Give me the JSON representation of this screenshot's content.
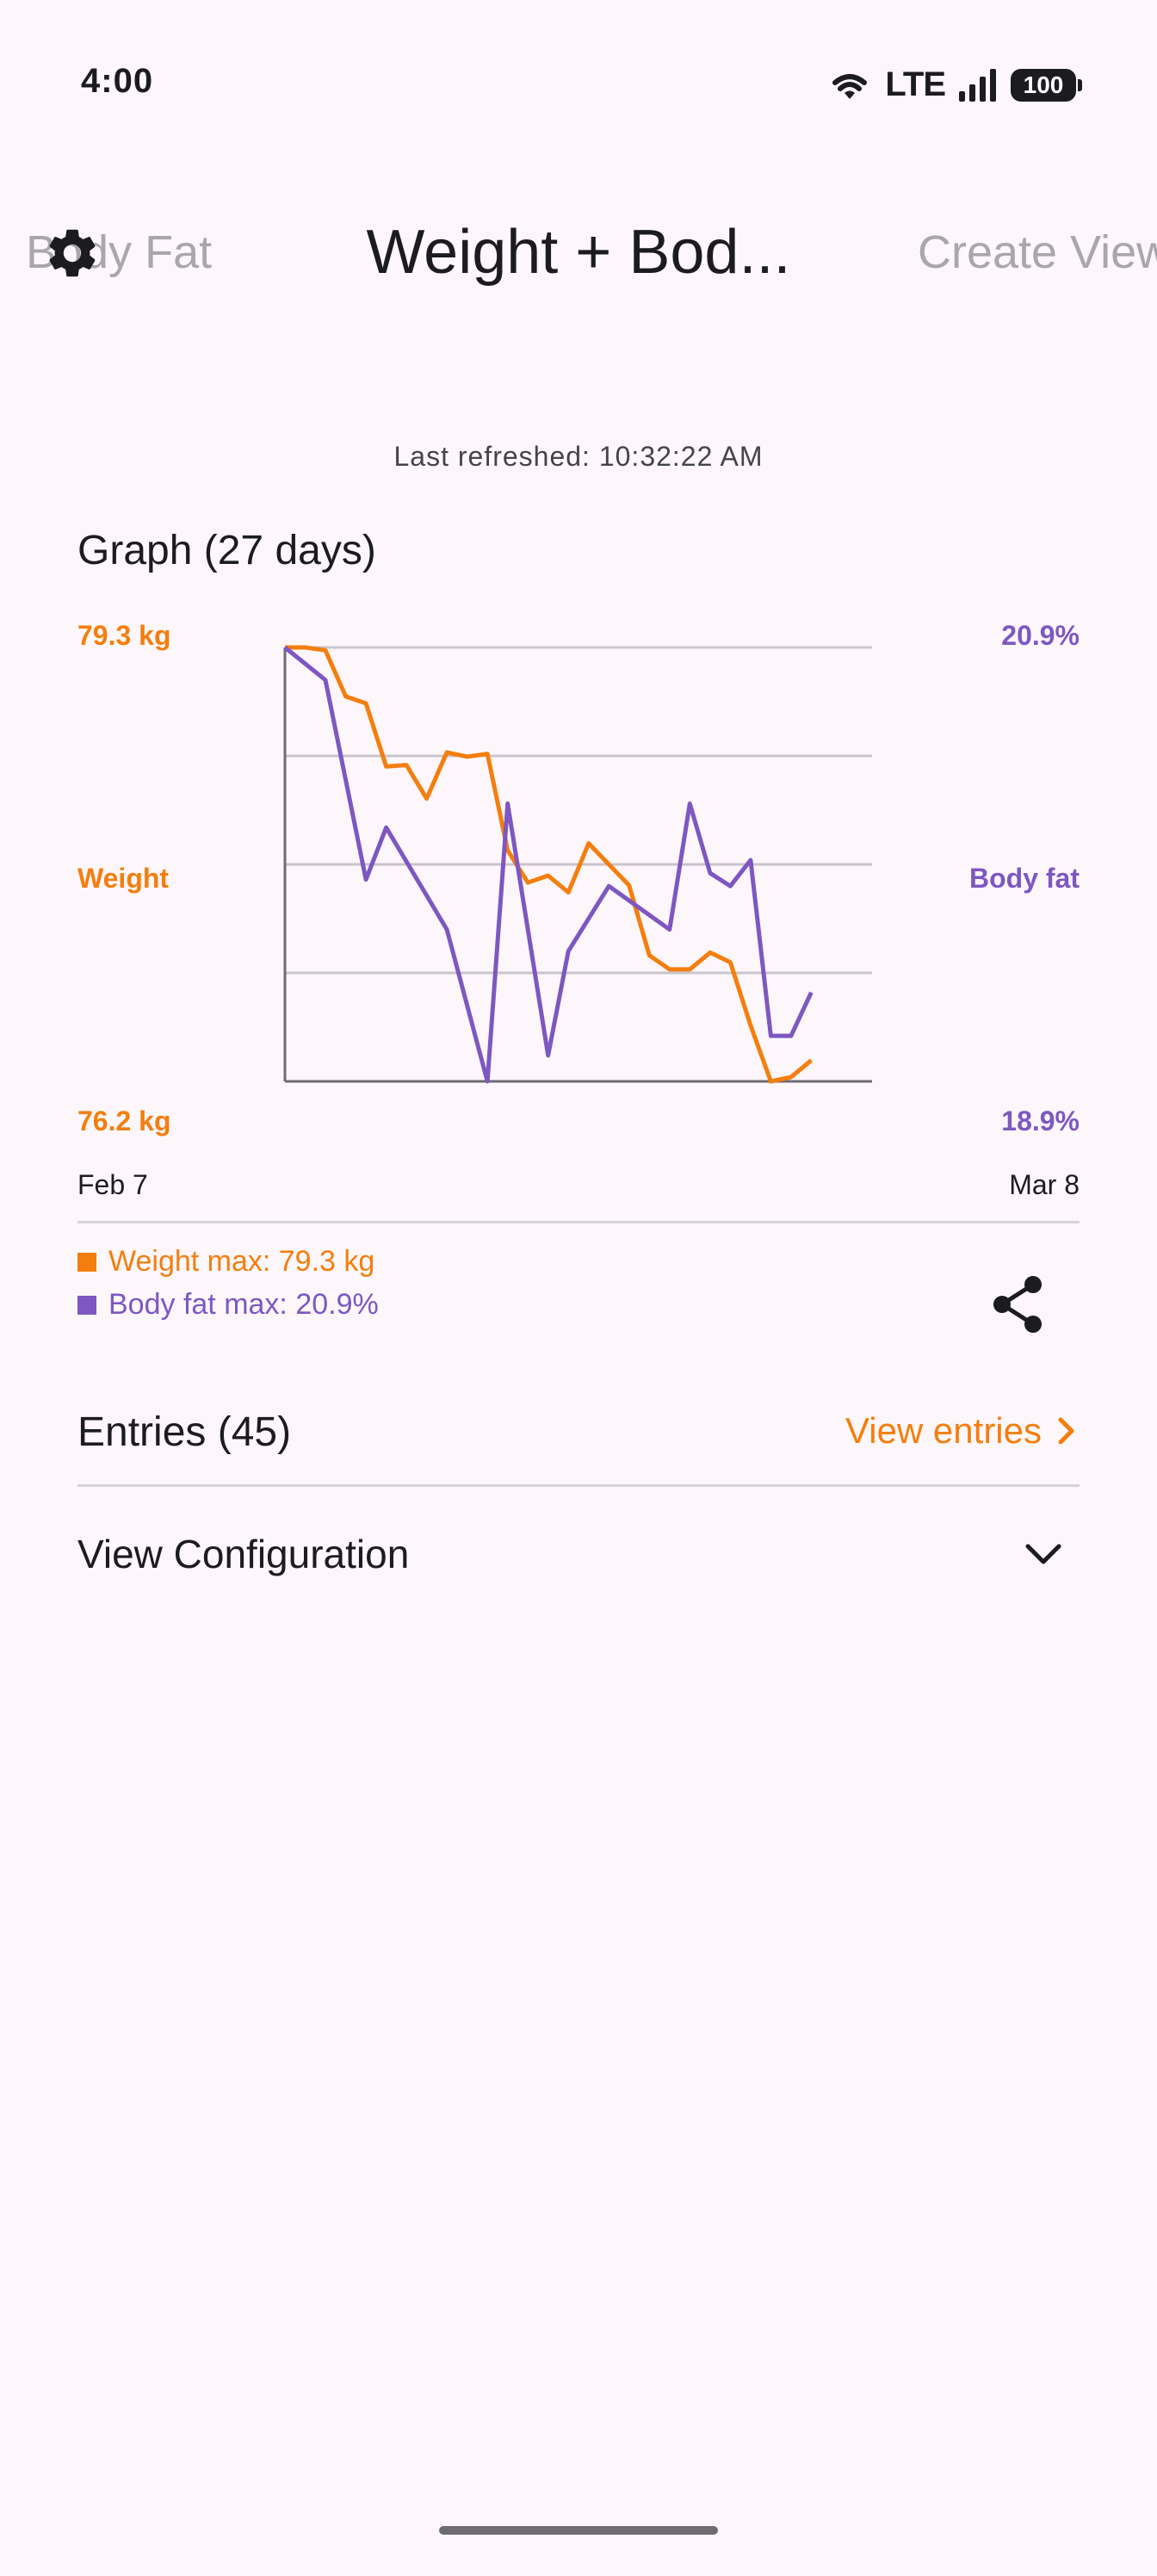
{
  "status_bar": {
    "time": "4:00",
    "network": "LTE",
    "battery": "100"
  },
  "tabs": {
    "left": "Body Fat",
    "center": "Weight + Bod...",
    "right": "Create View"
  },
  "last_refreshed": "Last refreshed: 10:32:22 AM",
  "graph": {
    "title": "Graph (27 days)",
    "left_axis": {
      "max": "79.3 kg",
      "label": "Weight",
      "min": "76.2 kg"
    },
    "right_axis": {
      "max": "20.9%",
      "label": "Body fat",
      "min": "18.9%"
    },
    "date_start": "Feb 7",
    "date_end": "Mar 8"
  },
  "colors": {
    "weight": "#F47E0E",
    "body_fat": "#7E57C2",
    "background": "#FDF7FC"
  },
  "chart_data": {
    "type": "line",
    "x": [
      "Feb 7",
      "Feb 8",
      "Feb 9",
      "Feb 10",
      "Feb 11",
      "Feb 12",
      "Feb 13",
      "Feb 14",
      "Feb 15",
      "Feb 16",
      "Feb 17",
      "Feb 18",
      "Feb 19",
      "Feb 20",
      "Feb 21",
      "Feb 22",
      "Feb 23",
      "Feb 24",
      "Feb 25",
      "Feb 26",
      "Feb 27",
      "Feb 28",
      "Mar 1",
      "Mar 2",
      "Mar 3",
      "Mar 4",
      "Mar 5",
      "Mar 6",
      "Mar 7",
      "Mar 8"
    ],
    "series": [
      {
        "name": "Weight",
        "axis": "left",
        "ylim": [
          76.2,
          79.3
        ],
        "points": [
          [
            "Feb 7",
            79.3
          ],
          [
            "Feb 8",
            79.3
          ],
          [
            "Feb 9",
            79.28
          ],
          [
            "Feb 10",
            78.95
          ],
          [
            "Feb 11",
            78.9
          ],
          [
            "Feb 12",
            78.45
          ],
          [
            "Feb 13",
            78.46
          ],
          [
            "Feb 14",
            78.22
          ],
          [
            "Feb 15",
            78.55
          ],
          [
            "Feb 16",
            78.52
          ],
          [
            "Feb 17",
            78.54
          ],
          [
            "Feb 18",
            77.85
          ],
          [
            "Feb 19",
            77.62
          ],
          [
            "Feb 20",
            77.67
          ],
          [
            "Feb 21",
            77.55
          ],
          [
            "Feb 22",
            77.9
          ],
          [
            "Feb 23",
            77.75
          ],
          [
            "Feb 24",
            77.6
          ],
          [
            "Feb 25",
            77.1
          ],
          [
            "Feb 26",
            77.0
          ],
          [
            "Feb 27",
            77.0
          ],
          [
            "Feb 28",
            77.12
          ],
          [
            "Mar 1",
            77.05
          ],
          [
            "Mar 2",
            76.6
          ],
          [
            "Mar 3",
            76.2
          ],
          [
            "Mar 4",
            76.23
          ],
          [
            "Mar 5",
            76.35
          ]
        ]
      },
      {
        "name": "Body fat",
        "axis": "right",
        "ylim": [
          18.9,
          20.9
        ],
        "points": [
          [
            "Feb 7",
            20.9
          ],
          [
            "Feb 9",
            20.75
          ],
          [
            "Feb 11",
            19.83
          ],
          [
            "Feb 12",
            20.07
          ],
          [
            "Feb 15",
            19.6
          ],
          [
            "Feb 17",
            18.9
          ],
          [
            "Feb 18",
            20.18
          ],
          [
            "Feb 20",
            19.02
          ],
          [
            "Feb 21",
            19.5
          ],
          [
            "Feb 23",
            19.8
          ],
          [
            "Feb 26",
            19.6
          ],
          [
            "Feb 27",
            20.18
          ],
          [
            "Feb 28",
            19.86
          ],
          [
            "Mar 1",
            19.8
          ],
          [
            "Mar 2",
            19.92
          ],
          [
            "Mar 3",
            19.11
          ],
          [
            "Mar 4",
            19.11
          ],
          [
            "Mar 5",
            19.31
          ]
        ]
      }
    ],
    "gridlines": true
  },
  "legend": {
    "weight": "Weight max: 79.3 kg",
    "body_fat": "Body fat max: 20.9%"
  },
  "entries": {
    "title": "Entries (45)",
    "link": "View entries"
  },
  "configuration": {
    "title": "View Configuration"
  }
}
